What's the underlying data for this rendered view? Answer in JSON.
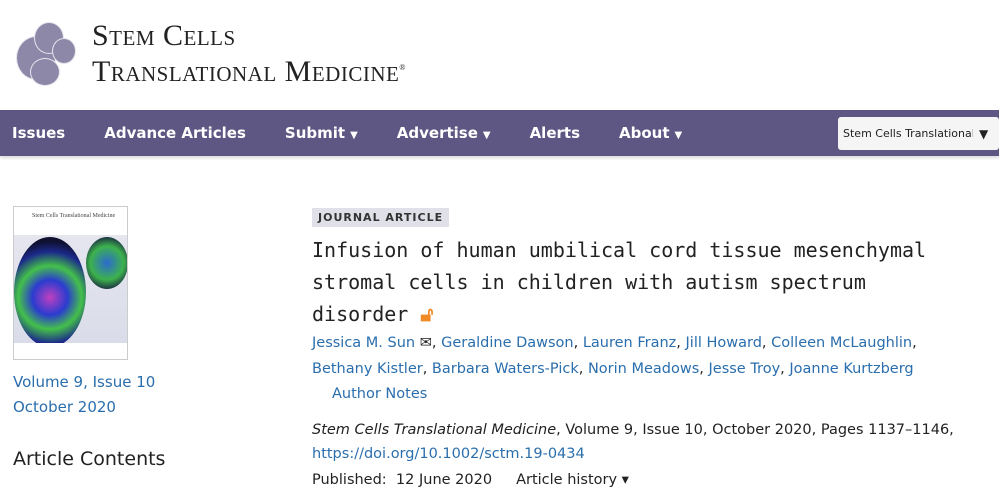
{
  "header": {
    "logo_line1": "Stem Cells",
    "logo_line2": "Translational Medicine",
    "logo_mark": "®"
  },
  "nav": {
    "items": [
      {
        "label": "Issues",
        "caret": false
      },
      {
        "label": "Advance Articles",
        "caret": false
      },
      {
        "label": "Submit",
        "caret": true
      },
      {
        "label": "Advertise",
        "caret": true
      },
      {
        "label": "Alerts",
        "caret": false
      },
      {
        "label": "About",
        "caret": true
      }
    ],
    "site_select": "Stem Cells Translational Medicine",
    "caret": "▼"
  },
  "sidebar": {
    "cover_title": "Stem Cells Translational Medicine",
    "volume": "Volume 9, Issue 10",
    "date": "October 2020",
    "contents_heading": "Article Contents"
  },
  "article": {
    "type": "JOURNAL ARTICLE",
    "title": "Infusion of human umbilical cord tissue mesenchymal stromal cells in children with autism spectrum disorder",
    "open_access_icon": "open-lock",
    "authors": [
      "Jessica M. Sun",
      "Geraldine Dawson",
      "Lauren Franz",
      "Jill Howard",
      "Colleen McLaughlin",
      "Bethany Kistler",
      "Barbara Waters-Pick",
      "Norin Meadows",
      "Jesse Troy",
      "Joanne Kurtzberg"
    ],
    "author_notes": "Author Notes",
    "journal": "Stem Cells Translational Medicine",
    "citation": ", Volume 9, Issue 10, October 2020, Pages 1137–1146,",
    "doi": "https://doi.org/10.1002/sctm.19-0434",
    "published_label": "Published:",
    "published_date": "12 June 2020",
    "history": "Article history ▾"
  },
  "colors": {
    "nav": "#5e5783",
    "link": "#2a6ead",
    "oa": "#f08a24"
  }
}
